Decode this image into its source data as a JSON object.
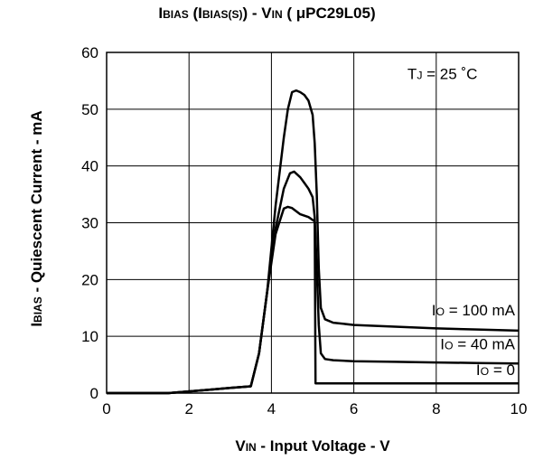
{
  "chart_data": {
    "type": "line",
    "title": {
      "p1": "I",
      "p1s": "BIAS",
      "p2": " (I",
      "p2s": "BIAS(S)",
      "p3": ") - V",
      "p3s": "IN",
      "p4": " ( μPC29L05)"
    },
    "xlabel": {
      "main": "V",
      "sub": "IN",
      "rest": " - Input Voltage - V"
    },
    "ylabel": {
      "main": "I",
      "sub": "BIAS",
      "rest": " - Quiescent Current - mA"
    },
    "xlim": [
      0,
      10
    ],
    "ylim": [
      0,
      60
    ],
    "xticks": [
      "0",
      "2",
      "4",
      "6",
      "8",
      "10"
    ],
    "yticks": [
      "0",
      "10",
      "20",
      "30",
      "40",
      "50",
      "60"
    ],
    "grid": true,
    "annotation": {
      "main": "T",
      "sub": "J",
      "rest": " = 25 ˚C"
    },
    "series": [
      {
        "name": "IO = 100 mA",
        "label": {
          "main": "I",
          "sub": "O",
          "rest": " = 100 mA"
        },
        "x": [
          0,
          1.5,
          2,
          2.5,
          3,
          3.5,
          3.7,
          3.9,
          4.1,
          4.3,
          4.4,
          4.5,
          4.6,
          4.7,
          4.8,
          4.9,
          5.0,
          5.05,
          5.1,
          5.15,
          5.2,
          5.3,
          5.5,
          6,
          7,
          8,
          9,
          10
        ],
        "y": [
          0,
          0,
          0.3,
          0.6,
          0.9,
          1.2,
          7,
          18,
          33,
          45,
          50,
          53,
          53.3,
          53,
          52.5,
          51.5,
          49,
          44,
          35,
          22,
          15,
          13,
          12.4,
          12,
          11.7,
          11.4,
          11.2,
          11
        ]
      },
      {
        "name": "IO = 40 mA",
        "label": {
          "main": "I",
          "sub": "O",
          "rest": " = 40 mA"
        },
        "x": [
          0,
          1.5,
          2,
          2.5,
          3,
          3.5,
          3.7,
          3.9,
          4.1,
          4.3,
          4.45,
          4.55,
          4.7,
          4.8,
          4.9,
          5.0,
          5.05,
          5.1,
          5.15,
          5.2,
          5.3,
          5.5,
          6,
          7,
          8,
          9,
          10
        ],
        "y": [
          0,
          0,
          0.3,
          0.6,
          0.9,
          1.2,
          7,
          18,
          29,
          36,
          38.7,
          39,
          38,
          37,
          36,
          34.5,
          31,
          22,
          12,
          7,
          6,
          5.8,
          5.6,
          5.5,
          5.4,
          5.3,
          5.2
        ]
      },
      {
        "name": "IO = 0",
        "label": {
          "main": "I",
          "sub": "O",
          "rest": " = 0"
        },
        "x": [
          0,
          1.5,
          2,
          2.5,
          3,
          3.5,
          3.7,
          3.9,
          4.1,
          4.3,
          4.4,
          4.5,
          4.7,
          4.9,
          5.0,
          5.05,
          5.07,
          6,
          7,
          8,
          9,
          10
        ],
        "y": [
          0,
          0,
          0.3,
          0.6,
          0.9,
          1.2,
          7,
          18,
          28,
          32.5,
          32.8,
          32.6,
          31.5,
          31,
          30.5,
          30.2,
          1.7,
          1.7,
          1.7,
          1.7,
          1.7,
          1.7
        ]
      }
    ]
  }
}
